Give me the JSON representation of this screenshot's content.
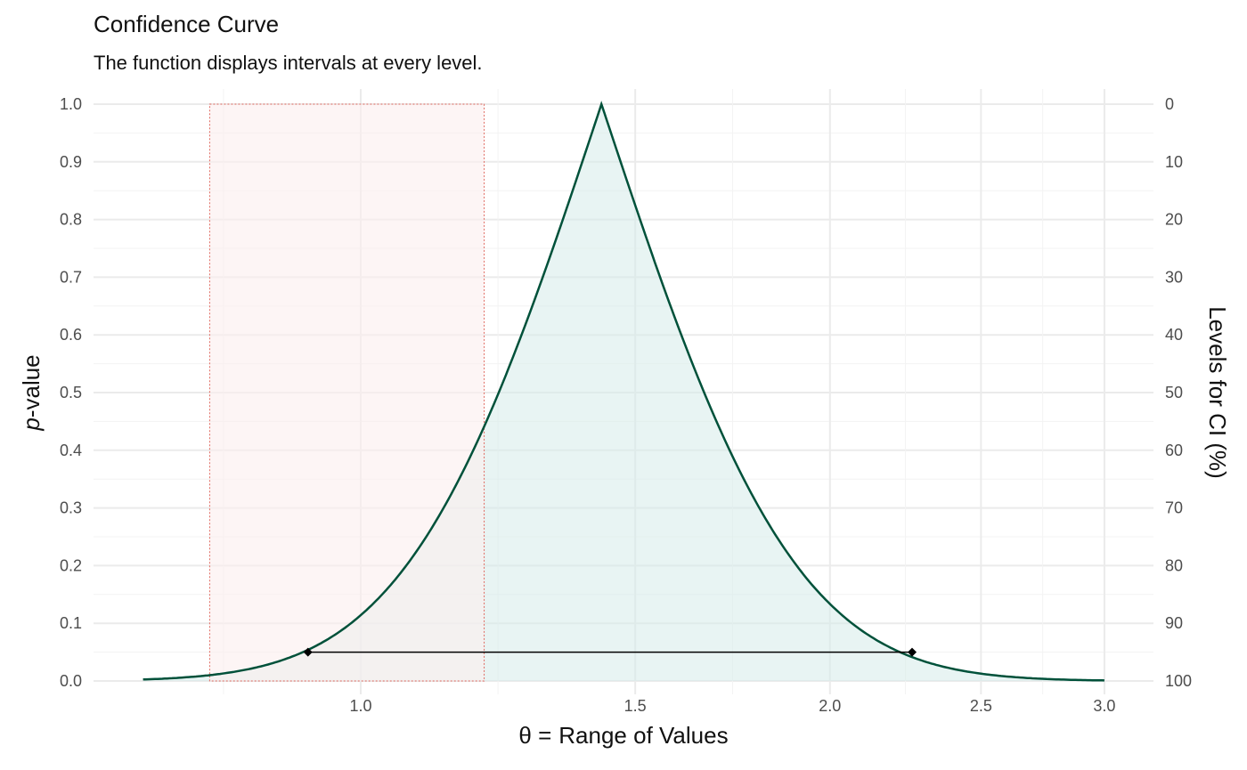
{
  "chart_data": {
    "type": "line",
    "title": "Confidence Curve",
    "subtitle": "The function displays intervals at every level.",
    "xlabel_symbol": "θ =",
    "xlabel": "Range of Values",
    "ylabel_italic": "p",
    "ylabel": "-value",
    "ylabel_right": "Levels for CI (%)",
    "x_scale": "log",
    "xlim": [
      0.725,
      3.0
    ],
    "ylim": [
      0,
      1
    ],
    "x_ticks": [
      1.0,
      1.5,
      2.0,
      2.5,
      3.0
    ],
    "x_tick_labels": [
      "1.0",
      "1.5",
      "2.0",
      "2.5",
      "3.0"
    ],
    "y_ticks": [
      0,
      0.1,
      0.2,
      0.3,
      0.4,
      0.5,
      0.6,
      0.7,
      0.8,
      0.9,
      1.0
    ],
    "y_tick_labels": [
      "0.0",
      "0.1",
      "0.2",
      "0.3",
      "0.4",
      "0.5",
      "0.6",
      "0.7",
      "0.8",
      "0.9",
      "1.0"
    ],
    "y_right_tick_labels": [
      "100",
      "90",
      "80",
      "70",
      "60",
      "50",
      "40",
      "30",
      "20",
      "10",
      "0"
    ],
    "curve_model": {
      "estimate": 1.427,
      "se_log": 0.225
    },
    "points": [
      {
        "x": 0.725,
        "p": 0.003
      },
      {
        "x": 0.8,
        "p": 0.01
      },
      {
        "x": 0.9,
        "p": 0.04
      },
      {
        "x": 1.0,
        "p": 0.114
      },
      {
        "x": 1.1,
        "p": 0.247
      },
      {
        "x": 1.2,
        "p": 0.441
      },
      {
        "x": 1.3,
        "p": 0.679
      },
      {
        "x": 1.427,
        "p": 1.0
      },
      {
        "x": 1.6,
        "p": 0.611
      },
      {
        "x": 1.8,
        "p": 0.302
      },
      {
        "x": 2.0,
        "p": 0.134
      },
      {
        "x": 2.25,
        "p": 0.043
      },
      {
        "x": 2.5,
        "p": 0.013
      },
      {
        "x": 3.0,
        "p": 0.001
      }
    ],
    "interval": {
      "level_p": 0.05,
      "lower": 0.925,
      "upper": 2.258
    },
    "null_region": {
      "xmin": 0.8,
      "xmax": 1.2
    },
    "colors": {
      "curve": "#00513a",
      "fill": "#d5ebea",
      "region_fill": "#fbeeee",
      "region_border": "#e06a60",
      "interval": "#000000"
    },
    "grid": true
  }
}
